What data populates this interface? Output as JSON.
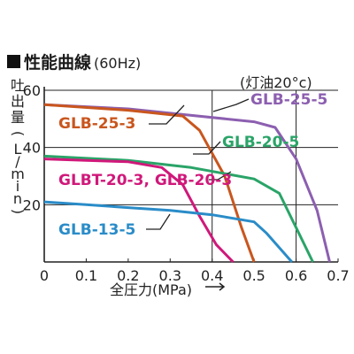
{
  "chart_data": {
    "type": "line",
    "title": "性能曲線",
    "title_suffix": "(60Hz)",
    "note": "(灯油20°c)",
    "xlabel": "全圧力(MPa)",
    "ylabel": "吐出量(L/min)",
    "xlim": [
      0,
      0.7
    ],
    "ylim": [
      0,
      60
    ],
    "x_ticks": [
      0,
      0.1,
      0.2,
      0.3,
      0.4,
      0.5,
      0.6,
      0.7
    ],
    "x_tick_labels": [
      "0",
      "0.1",
      "0.2",
      "0.3",
      "0.4",
      "0.5",
      "0.6",
      "0.7"
    ],
    "y_ticks": [
      20,
      40,
      60
    ],
    "y_tick_labels": [
      "20",
      "40",
      "60"
    ],
    "vertical_reference_lines": [
      0.4,
      0.6
    ],
    "series": [
      {
        "name": "GLB-25-5",
        "color": "#8c5fb0",
        "x": [
          0,
          0.2,
          0.3,
          0.5,
          0.55,
          0.6,
          0.65,
          0.68
        ],
        "y": [
          55,
          53.5,
          52,
          49,
          47,
          36,
          18,
          0
        ]
      },
      {
        "name": "GLB-25-3",
        "color": "#c9561e",
        "x": [
          0,
          0.2,
          0.33,
          0.37,
          0.43,
          0.47,
          0.5
        ],
        "y": [
          55,
          53,
          51,
          46,
          30,
          12,
          0
        ]
      },
      {
        "name": "GLB-20-5",
        "color": "#2aa468",
        "x": [
          0,
          0.2,
          0.35,
          0.5,
          0.56,
          0.6,
          0.64
        ],
        "y": [
          37,
          35.5,
          33,
          29,
          24,
          12,
          0
        ]
      },
      {
        "name": "GLBT-20-3, GLB-20-3",
        "color": "#d0187a",
        "x": [
          0,
          0.1,
          0.2,
          0.28,
          0.33,
          0.37,
          0.41,
          0.45
        ],
        "y": [
          36,
          35.5,
          35,
          33,
          27,
          16,
          6,
          0
        ]
      },
      {
        "name": "GLB-13-5",
        "color": "#2a8cc8",
        "x": [
          0,
          0.1,
          0.2,
          0.3,
          0.4,
          0.5,
          0.53,
          0.59
        ],
        "y": [
          21,
          20,
          19,
          18,
          16.5,
          14,
          10,
          0
        ]
      }
    ]
  }
}
